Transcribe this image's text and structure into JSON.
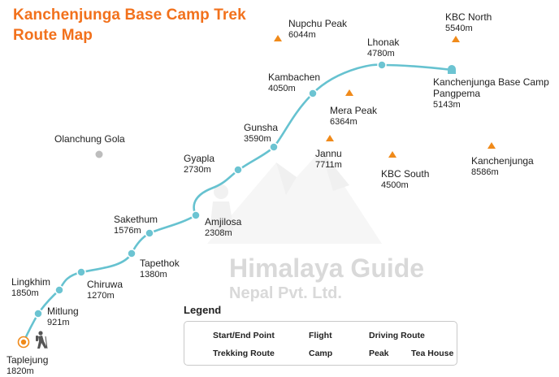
{
  "title": {
    "line1": "Kanchenjunga Base Camp Trek",
    "line2": "Route Map"
  },
  "watermark": {
    "line1": "Himalaya Guide",
    "line2": "Nepal Pvt. Ltd."
  },
  "colors": {
    "title": "#f2711c",
    "route": "#66c2d0",
    "peak": "#f08a1a",
    "start": "#f08a1a",
    "flight": "#e02020",
    "village": "#bdbdbd"
  },
  "start_point": {
    "name": "Taplejung",
    "elev": "1820m"
  },
  "route_stops": [
    {
      "name": "Mitlung",
      "elev": "921m",
      "type": "tea-house"
    },
    {
      "name": "Lingkhim",
      "elev": "1850m",
      "type": "tea-house"
    },
    {
      "name": "Chiruwa",
      "elev": "1270m",
      "type": "tea-house"
    },
    {
      "name": "Tapethok",
      "elev": "1380m",
      "type": "tea-house"
    },
    {
      "name": "Sakethum",
      "elev": "1576m",
      "type": "tea-house"
    },
    {
      "name": "Amjilosa",
      "elev": "2308m",
      "type": "tea-house"
    },
    {
      "name": "Gyapla",
      "elev": "2730m",
      "type": "tea-house"
    },
    {
      "name": "Gunsha",
      "elev": "3590m",
      "type": "tea-house"
    },
    {
      "name": "Kambachen",
      "elev": "4050m",
      "type": "tea-house"
    },
    {
      "name": "Lhonak",
      "elev": "4780m",
      "type": "tea-house"
    },
    {
      "name": "Kanchenjunga Base Camp",
      "name2": "Pangpema",
      "elev": "5143m",
      "type": "camp"
    }
  ],
  "peaks": [
    {
      "name": "Nupchu Peak",
      "elev": "6044m"
    },
    {
      "name": "KBC North",
      "elev": "5540m"
    },
    {
      "name": "Mera Peak",
      "elev": "6364m"
    },
    {
      "name": "Jannu",
      "elev": "7711m"
    },
    {
      "name": "KBC South",
      "elev": "4500m"
    },
    {
      "name": "Kanchenjunga",
      "elev": "8586m"
    }
  ],
  "other_places": [
    {
      "name": "Olanchung Gola"
    }
  ],
  "legend": {
    "title": "Legend",
    "items": {
      "start_end": "Start/End Point",
      "flight": "Flight",
      "driving": "Driving Route",
      "trekking": "Trekking Route",
      "camp": "Camp",
      "peak": "Peak",
      "tea_house": "Tea House"
    }
  },
  "icons": {
    "hiker": "hiker-icon",
    "start": "start-end-point-icon",
    "camp": "camp-icon",
    "peak": "peak-icon",
    "tea_house": "tea-house-icon"
  }
}
